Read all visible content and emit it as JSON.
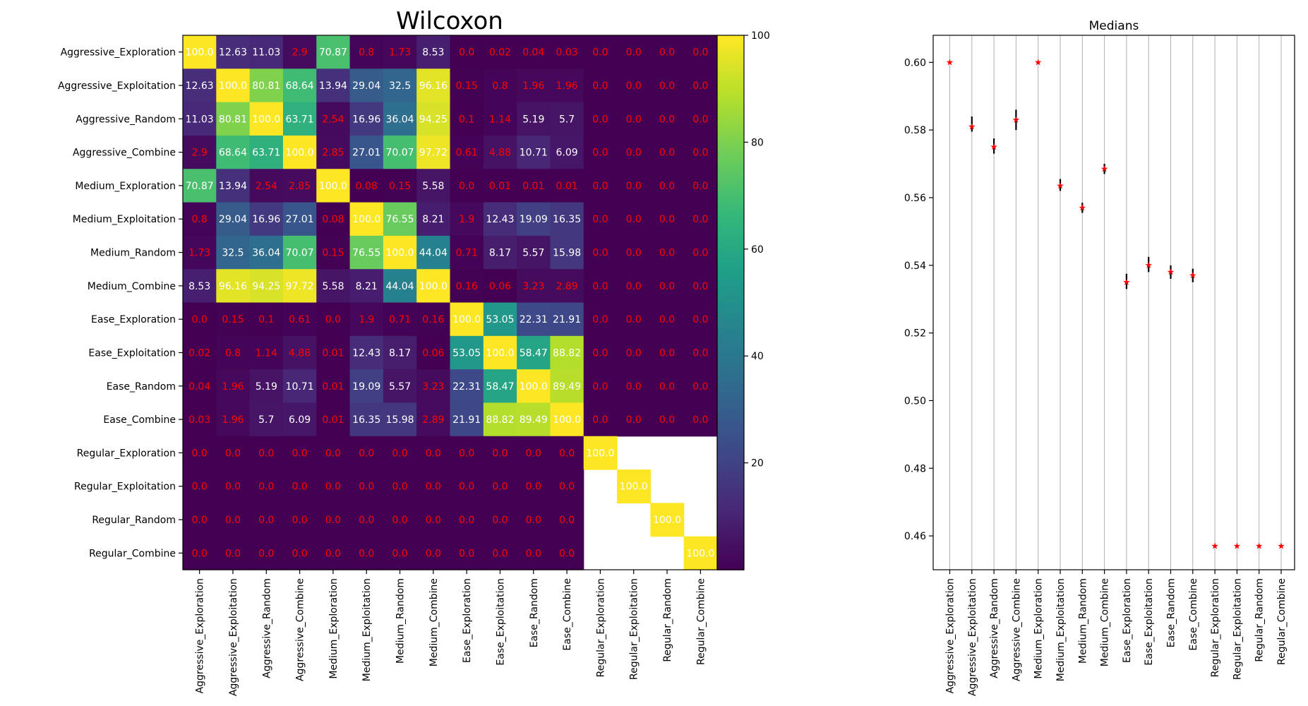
{
  "chart_data": [
    {
      "type": "heatmap",
      "title": "Wilcoxon",
      "categories": [
        "Aggressive_Exploration",
        "Aggressive_Exploitation",
        "Aggressive_Random",
        "Aggressive_Combine",
        "Medium_Exploration",
        "Medium_Exploitation",
        "Medium_Random",
        "Medium_Combine",
        "Ease_Exploration",
        "Ease_Exploitation",
        "Ease_Random",
        "Ease_Combine",
        "Regular_Exploration",
        "Regular_Exploitation",
        "Regular_Random",
        "Regular_Combine"
      ],
      "values": [
        [
          "100.0",
          "12.63",
          "11.03",
          "2.9",
          "70.87",
          "0.8",
          "1.73",
          "8.53",
          "0.0",
          "0.02",
          "0.04",
          "0.03",
          "0.0",
          "0.0",
          "0.0",
          "0.0"
        ],
        [
          "12.63",
          "100.0",
          "80.81",
          "68.64",
          "13.94",
          "29.04",
          "32.5",
          "96.16",
          "0.15",
          "0.8",
          "1.96",
          "1.96",
          "0.0",
          "0.0",
          "0.0",
          "0.0"
        ],
        [
          "11.03",
          "80.81",
          "100.0",
          "63.71",
          "2.54",
          "16.96",
          "36.04",
          "94.25",
          "0.1",
          "1.14",
          "5.19",
          "5.7",
          "0.0",
          "0.0",
          "0.0",
          "0.0"
        ],
        [
          "2.9",
          "68.64",
          "63.71",
          "100.0",
          "2.85",
          "27.01",
          "70.07",
          "97.72",
          "0.61",
          "4.88",
          "10.71",
          "6.09",
          "0.0",
          "0.0",
          "0.0",
          "0.0"
        ],
        [
          "70.87",
          "13.94",
          "2.54",
          "2.85",
          "100.0",
          "0.08",
          "0.15",
          "5.58",
          "0.0",
          "0.01",
          "0.01",
          "0.01",
          "0.0",
          "0.0",
          "0.0",
          "0.0"
        ],
        [
          "0.8",
          "29.04",
          "16.96",
          "27.01",
          "0.08",
          "100.0",
          "76.55",
          "8.21",
          "1.9",
          "12.43",
          "19.09",
          "16.35",
          "0.0",
          "0.0",
          "0.0",
          "0.0"
        ],
        [
          "1.73",
          "32.5",
          "36.04",
          "70.07",
          "0.15",
          "76.55",
          "100.0",
          "44.04",
          "0.71",
          "8.17",
          "5.57",
          "15.98",
          "0.0",
          "0.0",
          "0.0",
          "0.0"
        ],
        [
          "8.53",
          "96.16",
          "94.25",
          "97.72",
          "5.58",
          "8.21",
          "44.04",
          "100.0",
          "0.16",
          "0.06",
          "3.23",
          "2.89",
          "0.0",
          "0.0",
          "0.0",
          "0.0"
        ],
        [
          "0.0",
          "0.15",
          "0.1",
          "0.61",
          "0.0",
          "1.9",
          "0.71",
          "0.16",
          "100.0",
          "53.05",
          "22.31",
          "21.91",
          "0.0",
          "0.0",
          "0.0",
          "0.0"
        ],
        [
          "0.02",
          "0.8",
          "1.14",
          "4.88",
          "0.01",
          "12.43",
          "8.17",
          "0.06",
          "53.05",
          "100.0",
          "58.47",
          "88.82",
          "0.0",
          "0.0",
          "0.0",
          "0.0"
        ],
        [
          "0.04",
          "1.96",
          "5.19",
          "10.71",
          "0.01",
          "19.09",
          "5.57",
          "3.23",
          "22.31",
          "58.47",
          "100.0",
          "89.49",
          "0.0",
          "0.0",
          "0.0",
          "0.0"
        ],
        [
          "0.03",
          "1.96",
          "5.7",
          "6.09",
          "0.01",
          "16.35",
          "15.98",
          "2.89",
          "21.91",
          "88.82",
          "89.49",
          "100.0",
          "0.0",
          "0.0",
          "0.0",
          "0.0"
        ],
        [
          "0.0",
          "0.0",
          "0.0",
          "0.0",
          "0.0",
          "0.0",
          "0.0",
          "0.0",
          "0.0",
          "0.0",
          "0.0",
          "0.0",
          "100.0",
          null,
          null,
          null
        ],
        [
          "0.0",
          "0.0",
          "0.0",
          "0.0",
          "0.0",
          "0.0",
          "0.0",
          "0.0",
          "0.0",
          "0.0",
          "0.0",
          "0.0",
          null,
          "100.0",
          null,
          null
        ],
        [
          "0.0",
          "0.0",
          "0.0",
          "0.0",
          "0.0",
          "0.0",
          "0.0",
          "0.0",
          "0.0",
          "0.0",
          "0.0",
          "0.0",
          null,
          null,
          "100.0",
          null
        ],
        [
          "0.0",
          "0.0",
          "0.0",
          "0.0",
          "0.0",
          "0.0",
          "0.0",
          "0.0",
          "0.0",
          "0.0",
          "0.0",
          "0.0",
          null,
          null,
          null,
          "100.0"
        ]
      ],
      "colormap": "viridis",
      "low_value_text_color": "#ff0000",
      "high_value_text_color": "#ffffff",
      "colorbar": {
        "range": [
          0,
          100
        ],
        "ticks": [
          "20",
          "40",
          "60",
          "80",
          "100"
        ]
      }
    },
    {
      "type": "scatter",
      "title": "Medians",
      "categories": [
        "Aggressive_Exploration",
        "Aggressive_Exploitation",
        "Aggressive_Random",
        "Aggressive_Combine",
        "Medium_Exploration",
        "Medium_Exploitation",
        "Medium_Random",
        "Medium_Combine",
        "Ease_Exploration",
        "Ease_Exploitation",
        "Ease_Random",
        "Ease_Combine",
        "Regular_Exploration",
        "Regular_Exploitation",
        "Regular_Random",
        "Regular_Combine"
      ],
      "values": [
        0.6,
        0.581,
        0.575,
        0.583,
        0.6,
        0.5635,
        0.557,
        0.5685,
        0.535,
        0.54,
        0.538,
        0.537,
        0.457,
        0.457,
        0.457,
        0.457
      ],
      "error_low": [
        0.6,
        0.5795,
        0.573,
        0.58,
        0.6,
        0.562,
        0.5555,
        0.567,
        0.533,
        0.538,
        0.536,
        0.535,
        0.457,
        0.457,
        0.457,
        0.457
      ],
      "error_high": [
        0.6,
        0.584,
        0.5775,
        0.586,
        0.6,
        0.5655,
        0.5585,
        0.57,
        0.5375,
        0.5425,
        0.54,
        0.539,
        0.457,
        0.457,
        0.457,
        0.457
      ],
      "ylim": [
        0.45,
        0.608
      ],
      "yticks": [
        "0.46",
        "0.48",
        "0.50",
        "0.52",
        "0.54",
        "0.56",
        "0.58",
        "0.60"
      ],
      "marker_color": "#ff0000",
      "errorbar_color": "#000000",
      "grid": "vertical"
    }
  ]
}
